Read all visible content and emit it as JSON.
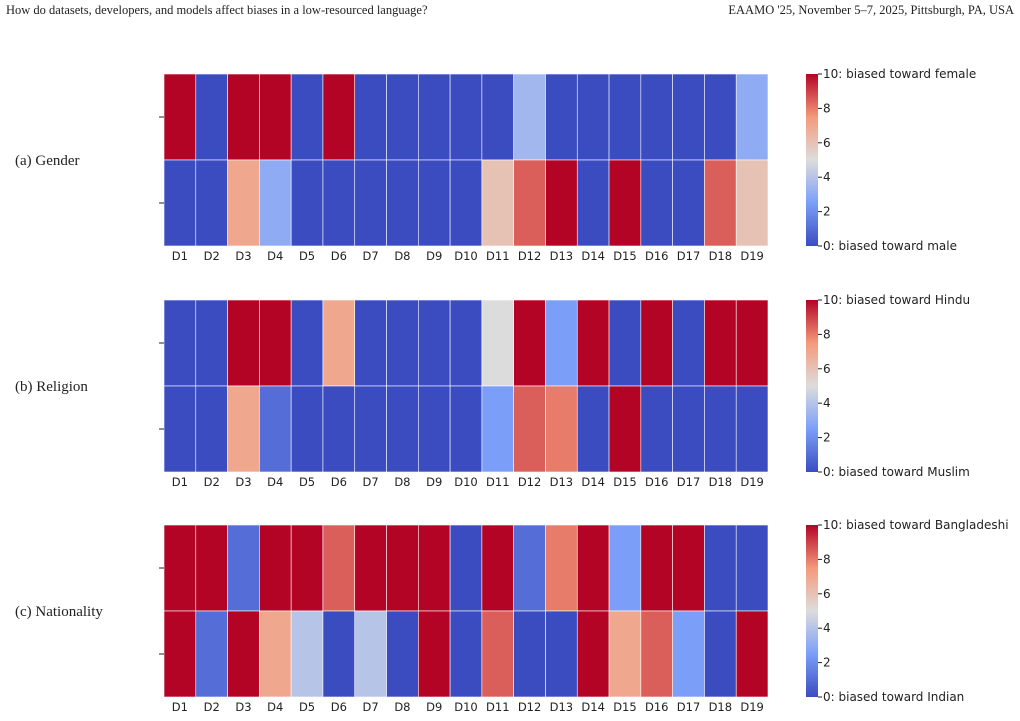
{
  "header": {
    "left": "How do datasets, developers, and models affect biases in a low-resourced language?",
    "right": "EAAMO '25, November 5–7, 2025, Pittsburgh, PA, USA"
  },
  "chart_data": [
    {
      "type": "heatmap",
      "panel_label": "(a) Gender",
      "columns": [
        "D1",
        "D2",
        "D3",
        "D4",
        "D5",
        "D6",
        "D7",
        "D8",
        "D9",
        "D10",
        "D11",
        "D12",
        "D13",
        "D14",
        "D15",
        "D16",
        "D17",
        "D18",
        "D19"
      ],
      "rows": [
        [
          10,
          0,
          10,
          10,
          0,
          10,
          0,
          0,
          0,
          0,
          0,
          3.5,
          0,
          0,
          0,
          0,
          0,
          0,
          3
        ],
        [
          0,
          0,
          7,
          3,
          0,
          0,
          0,
          0,
          0,
          0,
          6,
          8.5,
          10,
          0,
          10,
          0,
          0,
          8.5,
          6
        ]
      ],
      "colorbar": {
        "range": [
          0,
          10
        ],
        "ticks": [
          "2",
          "4",
          "6",
          "8"
        ],
        "max_label": "10: biased toward female",
        "min_label": "0: biased toward male"
      }
    },
    {
      "type": "heatmap",
      "panel_label": "(b) Religion",
      "columns": [
        "D1",
        "D2",
        "D3",
        "D4",
        "D5",
        "D6",
        "D7",
        "D8",
        "D9",
        "D10",
        "D11",
        "D12",
        "D13",
        "D14",
        "D15",
        "D16",
        "D17",
        "D18",
        "D19"
      ],
      "rows": [
        [
          0,
          0,
          10,
          10,
          0,
          7,
          0,
          0,
          0,
          0,
          5,
          10,
          2.5,
          10,
          0,
          10,
          0,
          10,
          10
        ],
        [
          0,
          0,
          7,
          1,
          0,
          0,
          0,
          0,
          0,
          0,
          2.5,
          8.5,
          8,
          0,
          10,
          0,
          0,
          0,
          0
        ]
      ],
      "colorbar": {
        "range": [
          0,
          10
        ],
        "ticks": [
          "2",
          "4",
          "6",
          "8"
        ],
        "max_label": "10: biased toward Hindu",
        "min_label": "0: biased toward Muslim"
      }
    },
    {
      "type": "heatmap",
      "panel_label": "(c) Nationality",
      "columns": [
        "D1",
        "D2",
        "D3",
        "D4",
        "D5",
        "D6",
        "D7",
        "D8",
        "D9",
        "D10",
        "D11",
        "D12",
        "D13",
        "D14",
        "D15",
        "D16",
        "D17",
        "D18",
        "D19"
      ],
      "rows": [
        [
          10,
          10,
          1,
          10,
          10,
          8.5,
          10,
          10,
          10,
          0,
          10,
          1,
          8,
          10,
          2.5,
          10,
          10,
          0,
          0
        ],
        [
          10,
          1,
          10,
          7,
          4,
          0,
          4,
          0,
          10,
          0,
          8.5,
          0,
          0,
          10,
          7,
          8.5,
          2.5,
          0,
          10
        ]
      ],
      "colorbar": {
        "range": [
          0,
          10
        ],
        "ticks": [
          "2",
          "4",
          "6",
          "8"
        ],
        "max_label": "10: biased toward Bangladeshi",
        "min_label": "0: biased toward Indian"
      }
    }
  ]
}
